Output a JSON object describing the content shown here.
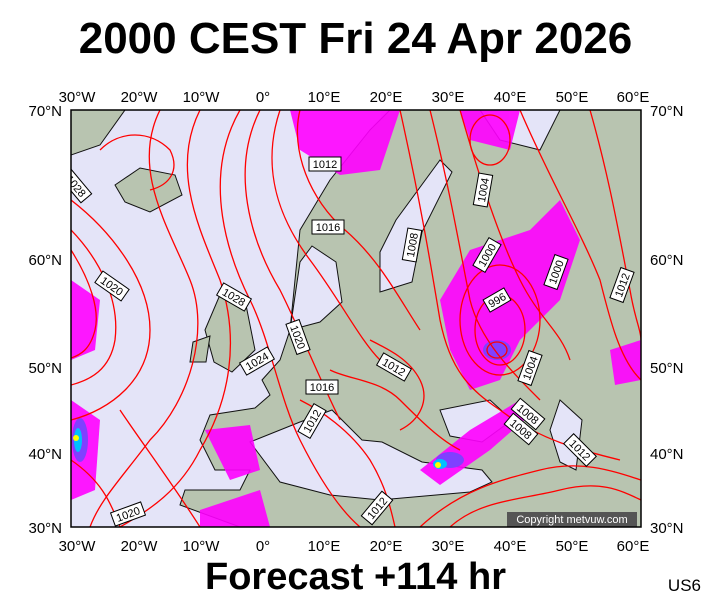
{
  "title": "2000 CEST Fri 24 Apr 2026",
  "footer": "Forecast +114 hr",
  "model": "US6",
  "copyright": "Copyright metvuw.com",
  "colors": {
    "sea": "#e4e4f8",
    "land": "#b8c4b0",
    "isobar": "#ff0000",
    "rain_light": "#ff00ff",
    "rain_medium": "#8040ff",
    "rain_heavy": "#00c0ff",
    "rain_extreme": "#ffff00"
  },
  "map": {
    "lon_labels": [
      "30°W",
      "20°W",
      "10°W",
      "0°",
      "10°E",
      "20°E",
      "30°E",
      "40°E",
      "50°E",
      "60°E"
    ],
    "lat_labels": [
      "70°N",
      "60°N",
      "50°N",
      "40°N",
      "30°N"
    ],
    "isobar_labels": [
      "1012",
      "1016",
      "1028",
      "1020",
      "1024",
      "1020",
      "1016",
      "1012",
      "1012",
      "1008",
      "1004",
      "1000",
      "996",
      "1000",
      "1012",
      "1004",
      "1008",
      "1008",
      "1012",
      "1012",
      "1020",
      "1028"
    ]
  }
}
